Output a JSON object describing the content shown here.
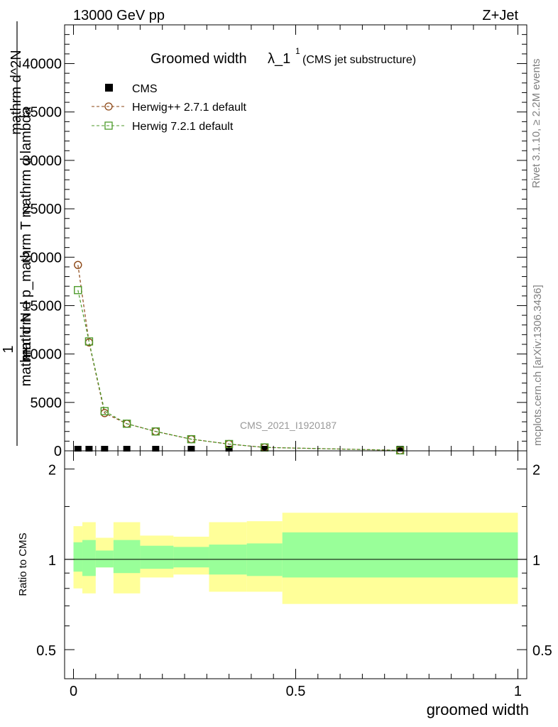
{
  "header": {
    "energy_label": "13000 GeV pp",
    "process_label": "Z+Jet"
  },
  "side_labels": {
    "rivet": "Rivet 3.1.10, ≥ 2.2M events",
    "mcplots": "mcplots.cern.ch [arXiv:1306.3436]"
  },
  "chart_data": [
    {
      "type": "line",
      "title_main": "Groomed width",
      "title_symbol": "λ_1",
      "title_sup": "1",
      "title_note": "(CMS jet substructure)",
      "watermark": "CMS_2021_I1920187",
      "ylabel_top": "1",
      "ylabel_bottom": "mathrm d N",
      "ylabel_line1": "mathrm d^2N",
      "ylabel_line2": "mathrm d p_mathrm T mathrm d lambda",
      "xlim": [
        -0.02,
        1.02
      ],
      "ylim": [
        0,
        44000
      ],
      "yticks": [
        0,
        5000,
        10000,
        15000,
        20000,
        25000,
        30000,
        35000,
        40000
      ],
      "ytick_labels": [
        "0",
        "5000",
        "10000",
        "15000",
        "20000",
        "25000",
        "30000",
        "35000",
        "40000"
      ],
      "legend": [
        {
          "label": "CMS",
          "marker": "filled-square",
          "color": "#000000"
        },
        {
          "label": "Herwig++ 2.7.1 default",
          "marker": "open-circle",
          "color": "#8b4513"
        },
        {
          "label": "Herwig 7.2.1 default",
          "marker": "open-square",
          "color": "#4c9a2a"
        }
      ],
      "series": [
        {
          "name": "CMS",
          "x": [
            0.01,
            0.035,
            0.07,
            0.12,
            0.185,
            0.265,
            0.35,
            0.43,
            0.735
          ],
          "y": [
            0,
            0,
            0,
            0,
            0,
            0,
            0,
            0,
            0
          ]
        },
        {
          "name": "Herwig++ 2.7.1 default",
          "x": [
            0.01,
            0.035,
            0.07,
            0.12,
            0.185,
            0.265,
            0.35,
            0.43,
            0.735
          ],
          "y": [
            19200,
            11200,
            3900,
            2800,
            2000,
            1200,
            700,
            350,
            50
          ]
        },
        {
          "name": "Herwig 7.2.1 default",
          "x": [
            0.01,
            0.035,
            0.07,
            0.12,
            0.185,
            0.265,
            0.35,
            0.43,
            0.735
          ],
          "y": [
            16600,
            11300,
            4100,
            2800,
            2000,
            1200,
            700,
            350,
            50
          ]
        }
      ]
    },
    {
      "type": "area",
      "ylabel": "Ratio to CMS",
      "xlabel": "groomed width",
      "xlim": [
        -0.02,
        1.02
      ],
      "ylim": [
        0.4,
        2.3
      ],
      "yticks": [
        0.5,
        1,
        2
      ],
      "ytick_labels": [
        "0.5",
        "1",
        "2"
      ],
      "xticks": [
        0,
        0.5,
        1
      ],
      "xtick_labels": [
        "0",
        "0.5",
        "1"
      ],
      "bins": [
        {
          "lo": 0.0,
          "hi": 0.02,
          "inner": [
            0.91,
            1.14
          ],
          "outer": [
            0.8,
            1.29
          ]
        },
        {
          "lo": 0.02,
          "hi": 0.05,
          "inner": [
            0.88,
            1.16
          ],
          "outer": [
            0.77,
            1.33
          ]
        },
        {
          "lo": 0.05,
          "hi": 0.09,
          "inner": [
            0.94,
            1.07
          ],
          "outer": [
            0.94,
            1.18
          ]
        },
        {
          "lo": 0.09,
          "hi": 0.15,
          "inner": [
            0.9,
            1.16
          ],
          "outer": [
            0.77,
            1.33
          ]
        },
        {
          "lo": 0.15,
          "hi": 0.225,
          "inner": [
            0.93,
            1.11
          ],
          "outer": [
            0.87,
            1.2
          ]
        },
        {
          "lo": 0.225,
          "hi": 0.305,
          "inner": [
            0.94,
            1.1
          ],
          "outer": [
            0.89,
            1.19
          ]
        },
        {
          "lo": 0.305,
          "hi": 0.39,
          "inner": [
            0.89,
            1.12
          ],
          "outer": [
            0.78,
            1.33
          ]
        },
        {
          "lo": 0.39,
          "hi": 0.47,
          "inner": [
            0.88,
            1.13
          ],
          "outer": [
            0.78,
            1.34
          ]
        },
        {
          "lo": 0.47,
          "hi": 1.0,
          "inner": [
            0.87,
            1.23
          ],
          "outer": [
            0.71,
            1.43
          ]
        }
      ]
    }
  ],
  "colors": {
    "band_inner": "#99ff99",
    "band_outer": "#ffff99",
    "herwigpp": "#8b4513",
    "herwig7": "#4c9a2a",
    "watermark": "#999999",
    "side_text": "#808080"
  }
}
